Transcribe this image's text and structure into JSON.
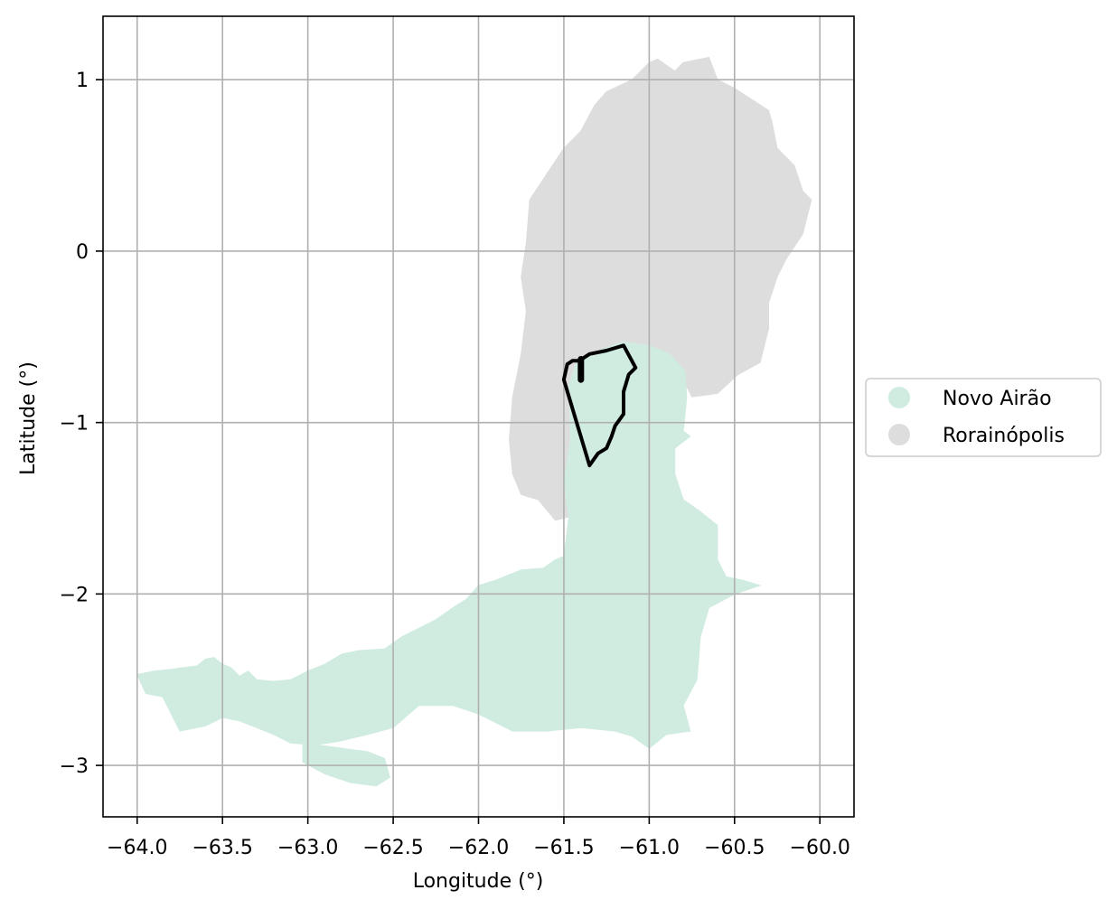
{
  "chart_data": {
    "type": "map",
    "xlabel": "Longitude (°)",
    "ylabel": "Latitude (°)",
    "xlim": [
      -64.2,
      -59.8
    ],
    "ylim": [
      -3.3,
      1.37
    ],
    "x_ticks": [
      -64.0,
      -63.5,
      -63.0,
      -62.5,
      -62.0,
      -61.5,
      -61.0,
      -60.5,
      -60.0
    ],
    "x_tick_labels": [
      "−64.0",
      "−63.5",
      "−63.0",
      "−62.5",
      "−62.0",
      "−61.5",
      "−61.0",
      "−60.5",
      "−60.0"
    ],
    "y_ticks": [
      1,
      0,
      -1,
      -2,
      -3
    ],
    "y_tick_labels": [
      "1",
      "0",
      "−1",
      "−2",
      "−3"
    ],
    "grid": true,
    "legend_position": "center-right outside",
    "colors": {
      "novo_airao": "#d0ebe0",
      "rorainopolis": "#dddddd",
      "outline": "#000000",
      "grid": "#b0b0b0"
    },
    "regions": [
      {
        "name": "Novo Airão",
        "color": "#d0ebe0",
        "polygon": [
          [
            -64.0,
            -2.47
          ],
          [
            -63.9,
            -2.45
          ],
          [
            -63.8,
            -2.44
          ],
          [
            -63.73,
            -2.43
          ],
          [
            -63.65,
            -2.42
          ],
          [
            -63.6,
            -2.38
          ],
          [
            -63.55,
            -2.37
          ],
          [
            -63.5,
            -2.41
          ],
          [
            -63.45,
            -2.43
          ],
          [
            -63.4,
            -2.48
          ],
          [
            -63.35,
            -2.45
          ],
          [
            -63.3,
            -2.5
          ],
          [
            -63.2,
            -2.51
          ],
          [
            -63.1,
            -2.5
          ],
          [
            -63.0,
            -2.45
          ],
          [
            -62.9,
            -2.41
          ],
          [
            -62.8,
            -2.35
          ],
          [
            -62.7,
            -2.33
          ],
          [
            -62.55,
            -2.32
          ],
          [
            -62.45,
            -2.25
          ],
          [
            -62.35,
            -2.2
          ],
          [
            -62.25,
            -2.15
          ],
          [
            -62.15,
            -2.08
          ],
          [
            -62.07,
            -2.03
          ],
          [
            -62.0,
            -1.95
          ],
          [
            -61.9,
            -1.92
          ],
          [
            -61.75,
            -1.86
          ],
          [
            -61.62,
            -1.85
          ],
          [
            -61.55,
            -1.8
          ],
          [
            -61.5,
            -1.78
          ],
          [
            -61.47,
            -1.55
          ],
          [
            -61.5,
            -1.35
          ],
          [
            -61.46,
            -1.1
          ],
          [
            -61.47,
            -0.78
          ],
          [
            -61.42,
            -0.63
          ],
          [
            -61.3,
            -0.58
          ],
          [
            -61.15,
            -0.53
          ],
          [
            -61.0,
            -0.55
          ],
          [
            -60.88,
            -0.6
          ],
          [
            -60.79,
            -0.7
          ],
          [
            -60.78,
            -0.85
          ],
          [
            -60.8,
            -1.05
          ],
          [
            -60.76,
            -1.08
          ],
          [
            -60.85,
            -1.15
          ],
          [
            -60.85,
            -1.3
          ],
          [
            -60.8,
            -1.45
          ],
          [
            -60.7,
            -1.52
          ],
          [
            -60.6,
            -1.6
          ],
          [
            -60.6,
            -1.8
          ],
          [
            -60.55,
            -1.9
          ],
          [
            -60.45,
            -1.92
          ],
          [
            -60.35,
            -1.95
          ],
          [
            -60.5,
            -2.0
          ],
          [
            -60.65,
            -2.08
          ],
          [
            -60.7,
            -2.25
          ],
          [
            -60.72,
            -2.5
          ],
          [
            -60.8,
            -2.65
          ],
          [
            -60.76,
            -2.8
          ],
          [
            -60.9,
            -2.82
          ],
          [
            -61.0,
            -2.9
          ],
          [
            -61.1,
            -2.83
          ],
          [
            -61.2,
            -2.8
          ],
          [
            -61.4,
            -2.78
          ],
          [
            -61.6,
            -2.8
          ],
          [
            -61.8,
            -2.8
          ],
          [
            -62.0,
            -2.7
          ],
          [
            -62.15,
            -2.65
          ],
          [
            -62.35,
            -2.65
          ],
          [
            -62.5,
            -2.78
          ],
          [
            -62.65,
            -2.82
          ],
          [
            -62.82,
            -2.86
          ],
          [
            -62.95,
            -2.88
          ],
          [
            -63.1,
            -2.87
          ],
          [
            -63.2,
            -2.82
          ],
          [
            -63.3,
            -2.78
          ],
          [
            -63.4,
            -2.74
          ],
          [
            -63.5,
            -2.72
          ],
          [
            -63.6,
            -2.77
          ],
          [
            -63.75,
            -2.8
          ],
          [
            -63.8,
            -2.7
          ],
          [
            -63.85,
            -2.6
          ],
          [
            -63.95,
            -2.58
          ],
          [
            -64.0,
            -2.47
          ]
        ],
        "holes": [
          [
            [
              -63.03,
              -2.98
            ],
            [
              -62.95,
              -2.95
            ],
            [
              -62.85,
              -2.92
            ],
            [
              -62.65,
              -2.93
            ],
            [
              -62.55,
              -2.95
            ],
            [
              -62.5,
              -3.05
            ],
            [
              -62.55,
              -3.12
            ],
            [
              -62.7,
              -3.1
            ],
            [
              -62.9,
              -3.05
            ],
            [
              -63.03,
              -2.98
            ]
          ]
        ],
        "extra": [
          [
            [
              -63.03,
              -2.86
            ],
            [
              -62.95,
              -2.88
            ],
            [
              -62.8,
              -2.9
            ],
            [
              -62.65,
              -2.92
            ],
            [
              -62.55,
              -2.96
            ],
            [
              -62.52,
              -3.07
            ],
            [
              -62.6,
              -3.12
            ],
            [
              -62.75,
              -3.1
            ],
            [
              -62.9,
              -3.05
            ],
            [
              -63.03,
              -2.98
            ],
            [
              -63.03,
              -2.86
            ]
          ]
        ]
      },
      {
        "name": "Rorainópolis",
        "color": "#dddddd",
        "polygon": [
          [
            -61.0,
            1.1
          ],
          [
            -60.95,
            1.12
          ],
          [
            -60.85,
            1.05
          ],
          [
            -60.8,
            1.1
          ],
          [
            -60.7,
            1.12
          ],
          [
            -60.65,
            1.13
          ],
          [
            -60.6,
            1.0
          ],
          [
            -60.5,
            0.95
          ],
          [
            -60.3,
            0.82
          ],
          [
            -60.28,
            0.75
          ],
          [
            -60.25,
            0.6
          ],
          [
            -60.15,
            0.5
          ],
          [
            -60.1,
            0.35
          ],
          [
            -60.05,
            0.3
          ],
          [
            -60.1,
            0.1
          ],
          [
            -60.2,
            -0.05
          ],
          [
            -60.25,
            -0.15
          ],
          [
            -60.3,
            -0.3
          ],
          [
            -60.3,
            -0.45
          ],
          [
            -60.35,
            -0.65
          ],
          [
            -60.48,
            -0.72
          ],
          [
            -60.6,
            -0.83
          ],
          [
            -60.75,
            -0.85
          ],
          [
            -60.8,
            -0.75
          ],
          [
            -61.0,
            -0.55
          ],
          [
            -61.15,
            -0.53
          ],
          [
            -61.3,
            -0.58
          ],
          [
            -61.42,
            -0.63
          ],
          [
            -61.47,
            -0.78
          ],
          [
            -61.46,
            -1.1
          ],
          [
            -61.5,
            -1.35
          ],
          [
            -61.47,
            -1.55
          ],
          [
            -61.55,
            -1.57
          ],
          [
            -61.65,
            -1.45
          ],
          [
            -61.75,
            -1.42
          ],
          [
            -61.8,
            -1.3
          ],
          [
            -61.82,
            -1.1
          ],
          [
            -61.8,
            -0.85
          ],
          [
            -61.75,
            -0.6
          ],
          [
            -61.72,
            -0.35
          ],
          [
            -61.75,
            -0.15
          ],
          [
            -61.72,
            0.05
          ],
          [
            -61.7,
            0.3
          ],
          [
            -61.6,
            0.45
          ],
          [
            -61.5,
            0.6
          ],
          [
            -61.4,
            0.7
          ],
          [
            -61.32,
            0.85
          ],
          [
            -61.25,
            0.93
          ],
          [
            -61.1,
            1.0
          ],
          [
            -61.0,
            1.1
          ]
        ]
      }
    ],
    "outline": {
      "polygon": [
        [
          -61.41,
          -0.64
        ],
        [
          -61.35,
          -0.6
        ],
        [
          -61.25,
          -0.58
        ],
        [
          -61.15,
          -0.55
        ],
        [
          -61.08,
          -0.68
        ],
        [
          -61.12,
          -0.72
        ],
        [
          -61.15,
          -0.82
        ],
        [
          -61.15,
          -0.95
        ],
        [
          -61.2,
          -1.02
        ],
        [
          -61.22,
          -1.08
        ],
        [
          -61.25,
          -1.15
        ],
        [
          -61.3,
          -1.18
        ],
        [
          -61.35,
          -1.25
        ],
        [
          -61.5,
          -0.75
        ],
        [
          -61.48,
          -0.66
        ],
        [
          -61.45,
          -0.64
        ],
        [
          -61.41,
          -0.64
        ]
      ],
      "spur": [
        [
          -61.4,
          -0.63
        ],
        [
          -61.4,
          -0.75
        ]
      ]
    }
  },
  "legend": {
    "items": [
      {
        "label": "Novo Airão",
        "color": "#d0ebe0"
      },
      {
        "label": "Rorainópolis",
        "color": "#dddddd"
      }
    ]
  }
}
